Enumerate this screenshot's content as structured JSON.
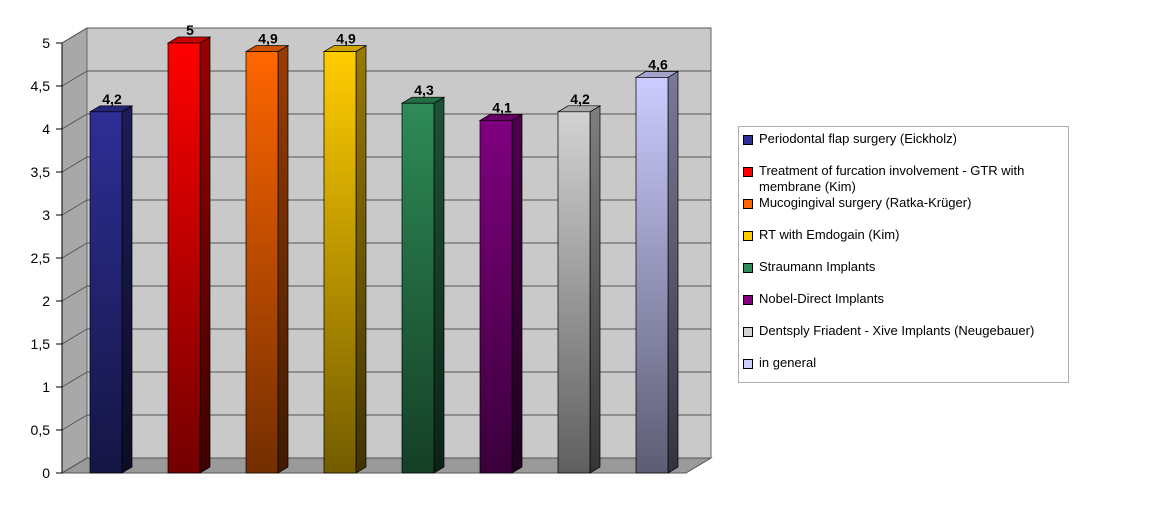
{
  "chart_data": {
    "type": "bar",
    "ylim": [
      0,
      5
    ],
    "yticks": [
      "0",
      "0,5",
      "1",
      "1,5",
      "2",
      "2,5",
      "3",
      "3,5",
      "4",
      "4,5",
      "5"
    ],
    "grid": true,
    "legend_position": "right",
    "series": [
      {
        "name": "Periodontal flap surgery (Eickholz)",
        "value": 4.2,
        "label": "4,2",
        "color": "#2e2e96"
      },
      {
        "name": "Treatment of furcation involvement - GTR with membrane (Kim)",
        "value": 5,
        "label": "5",
        "color": "#ff0000"
      },
      {
        "name": "Mucogingival surgery (Ratka-Krüger)",
        "value": 4.9,
        "label": "4,9",
        "color": "#ff6600"
      },
      {
        "name": "RT with Emdogain (Kim)",
        "value": 4.9,
        "label": "4,9",
        "color": "#ffcc00"
      },
      {
        "name": "Straumann Implants",
        "value": 4.3,
        "label": "4,3",
        "color": "#2e8b57"
      },
      {
        "name": "Nobel-Direct Implants",
        "value": 4.1,
        "label": "4,1",
        "color": "#800080"
      },
      {
        "name": "Dentsply Friadent - Xive Implants (Neugebauer)",
        "value": 4.2,
        "label": "4,2",
        "color": "#d3d3d3"
      },
      {
        "name": "in general",
        "value": 4.6,
        "label": "4,6",
        "color": "#ccccff"
      }
    ]
  }
}
